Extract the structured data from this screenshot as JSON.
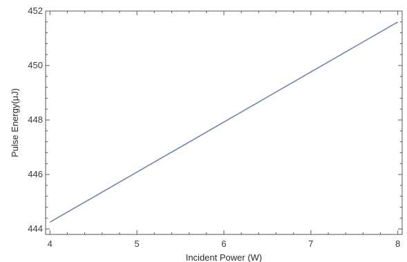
{
  "chart_data": {
    "type": "line",
    "title": "",
    "xlabel": "Incident Power (W)",
    "ylabel": "Pulse Energy(μJ)",
    "xlim": [
      3.95,
      8.05
    ],
    "ylim": [
      443.8,
      452.0
    ],
    "x_ticks": [
      4,
      5,
      6,
      7,
      8
    ],
    "y_ticks": [
      444,
      446,
      448,
      450,
      452
    ],
    "x_tick_labels": [
      "4",
      "5",
      "6",
      "7",
      "8"
    ],
    "y_tick_labels": [
      "444",
      "446",
      "448",
      "450",
      "452"
    ],
    "grid": false,
    "series": [
      {
        "color": "#6f86a8",
        "x": [
          4,
          8
        ],
        "y": [
          444.25,
          451.6
        ]
      }
    ]
  }
}
